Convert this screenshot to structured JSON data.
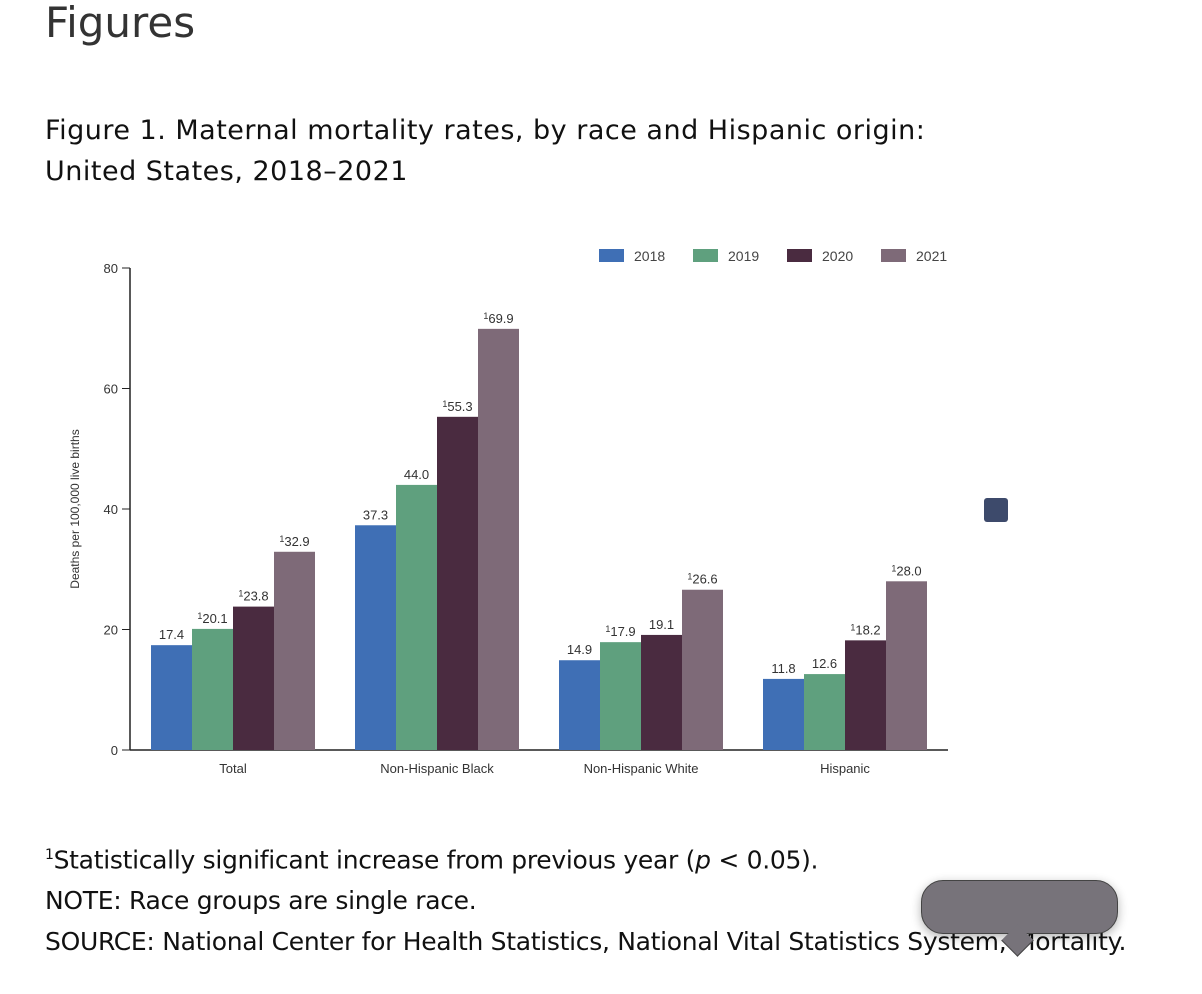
{
  "page": {
    "heading": "Figures",
    "figure_title_line1": "Figure 1. Maternal mortality rates, by race and Hispanic origin:",
    "figure_title_line2": "United States, 2018–2021"
  },
  "notes": {
    "footnote_mark": "1",
    "footnote": "Statistically significant increase from previous year (",
    "p": "p",
    "footnote_end": " < 0.05).",
    "note": "NOTE: Race groups are single race.",
    "source": "SOURCE: National Center for Health Statistics, National Vital Statistics System, Mortality."
  },
  "chart_data": {
    "type": "bar",
    "title": "Figure 1. Maternal mortality rates, by race and Hispanic origin: United States, 2018–2021",
    "xlabel": "",
    "ylabel": "Deaths per 100,000 live births",
    "ylim": [
      0,
      80
    ],
    "yticks": [
      0,
      20,
      40,
      60,
      80
    ],
    "categories": [
      "Total",
      "Non-Hispanic Black",
      "Non-Hispanic White",
      "Hispanic"
    ],
    "legend_position": "top-right",
    "series": [
      {
        "name": "2018",
        "color": "#3f6fb5",
        "values": [
          17.4,
          37.3,
          14.9,
          11.8
        ],
        "significant": [
          false,
          false,
          false,
          false
        ]
      },
      {
        "name": "2019",
        "color": "#5fa07e",
        "values": [
          20.1,
          44.0,
          17.9,
          12.6
        ],
        "significant": [
          true,
          false,
          true,
          false
        ]
      },
      {
        "name": "2020",
        "color": "#4a2b40",
        "values": [
          23.8,
          55.3,
          19.1,
          18.2
        ],
        "significant": [
          true,
          true,
          false,
          true
        ]
      },
      {
        "name": "2021",
        "color": "#7e6a78",
        "values": [
          32.9,
          69.9,
          26.6,
          28.0
        ],
        "significant": [
          true,
          true,
          true,
          true
        ]
      }
    ]
  }
}
